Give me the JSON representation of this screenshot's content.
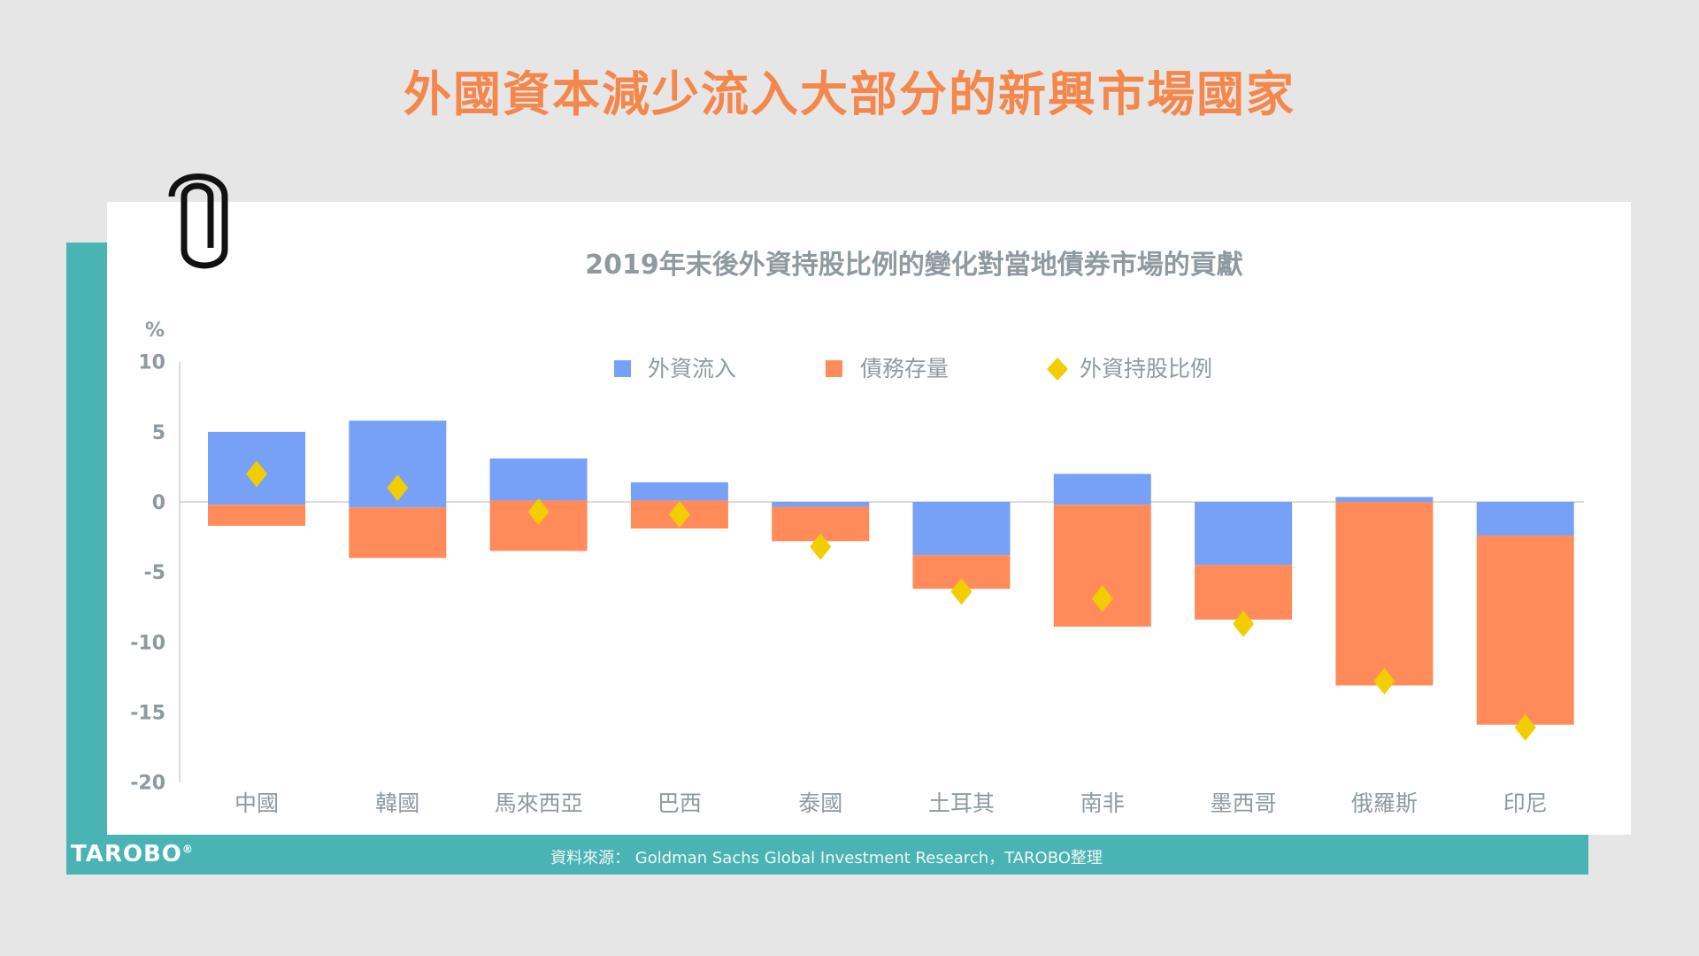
{
  "title": "外國資本減少流入大部分的新興市場國家",
  "footer": {
    "source": "資料來源： Goldman Sachs Global Investment Research，TAROBO整理",
    "logo": "TAROBO"
  },
  "colors": {
    "blue": "#76a1f7",
    "orange": "#ff8b5a",
    "diamond": "#f2cd00",
    "teal": "#4ab3b4",
    "title": "#f4874b"
  },
  "chart_data": {
    "type": "bar",
    "title": "2019年末後外資持股比例的變化對當地債券市場的貢獻",
    "ylabel": "%",
    "ylim": [
      -20,
      10
    ],
    "yticks": [
      "10",
      "5",
      "0",
      "-5",
      "-10",
      "-15",
      "-20"
    ],
    "ytick_values": [
      10,
      5,
      0,
      -5,
      -10,
      -15,
      -20
    ],
    "legend_position": "top",
    "categories": [
      "中國",
      "韓國",
      "馬來西亞",
      "巴西",
      "泰國",
      "土耳其",
      "南非",
      "墨西哥",
      "俄羅斯",
      "印尼"
    ],
    "series": [
      {
        "name": "外資流入",
        "kind": "floating-bar",
        "ranges": [
          [
            5.0,
            -0.2
          ],
          [
            5.8,
            -0.4
          ],
          [
            3.1,
            0.1
          ],
          [
            1.4,
            0.1
          ],
          [
            0,
            -0.35
          ],
          [
            0,
            -3.8
          ],
          [
            2.0,
            -0.2
          ],
          [
            0,
            -4.5
          ],
          [
            0.35,
            0
          ],
          [
            0,
            -2.4
          ]
        ]
      },
      {
        "name": "債務存量",
        "kind": "floating-bar",
        "ranges": [
          [
            -0.2,
            -1.7
          ],
          [
            -0.4,
            -4.0
          ],
          [
            0.1,
            -3.5
          ],
          [
            0.1,
            -1.9
          ],
          [
            -0.35,
            -2.8
          ],
          [
            -3.8,
            -6.2
          ],
          [
            -0.2,
            -8.9
          ],
          [
            -4.5,
            -8.4
          ],
          [
            0,
            -13.1
          ],
          [
            -2.4,
            -15.9
          ]
        ]
      },
      {
        "name": "外資持股比例",
        "kind": "marker-diamond",
        "values": [
          2.0,
          1.0,
          -0.7,
          -0.9,
          -3.2,
          -6.4,
          -6.9,
          -8.7,
          -12.8,
          -16.1
        ]
      }
    ]
  }
}
